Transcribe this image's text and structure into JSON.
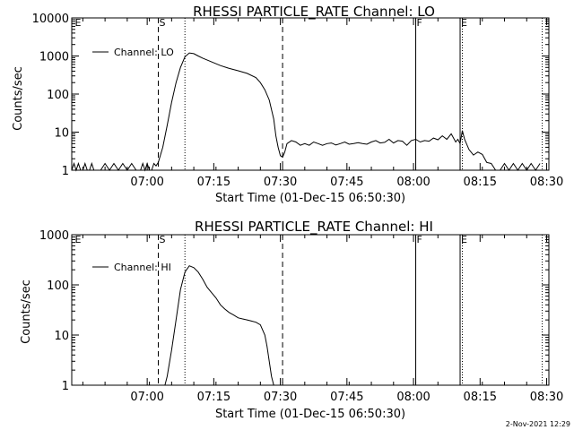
{
  "footer": {
    "timestamp": "2-Nov-2021 12:29"
  },
  "chart_data": [
    {
      "type": "line",
      "title": "RHESSI PARTICLE_RATE Channel: LO",
      "xlabel": "Start Time (01-Dec-15 06:50:30)",
      "ylabel": "Counts/sec",
      "yscale": "log",
      "ylim": [
        1,
        10000
      ],
      "xlim_min": [
        -7.5,
        100
      ],
      "yticks": [
        "1",
        "10",
        "100",
        "1000",
        "10000"
      ],
      "xticks": [
        "07:00",
        "07:15",
        "07:30",
        "07:45",
        "08:00",
        "08:15",
        "08:30"
      ],
      "xtick_min": [
        9.5,
        24.5,
        39.5,
        54.5,
        69.5,
        84.5,
        99.5
      ],
      "legend": {
        "label": "Channel: LO",
        "position": "top-left"
      },
      "markers": [
        {
          "label": "E",
          "x_min": -7,
          "style": "none"
        },
        {
          "label": "S",
          "x_min": 12,
          "style": "dashed"
        },
        {
          "label": "",
          "x_min": 18,
          "style": "dotted"
        },
        {
          "label": "",
          "x_min": 40,
          "style": "dashed"
        },
        {
          "label": "F",
          "x_min": 70,
          "style": "solid"
        },
        {
          "label": "E",
          "x_min": 80,
          "style": "solid"
        },
        {
          "label": "",
          "x_min": 80.5,
          "style": "dotted"
        },
        {
          "label": "",
          "x_min": 98.5,
          "style": "dotted"
        }
      ],
      "series": [
        {
          "name": "Channel: LO",
          "x_min": [
            -7.5,
            -7,
            -6.5,
            -6,
            -5.5,
            -5,
            -4.5,
            -4,
            -3.5,
            -3,
            -2.5,
            -2,
            -1,
            0,
            1,
            2,
            3,
            4,
            5,
            6,
            7,
            8,
            8.5,
            9,
            9.5,
            10,
            10.5,
            11,
            11.5,
            12,
            13,
            14,
            15,
            16,
            17,
            18,
            19,
            20,
            21,
            22,
            24,
            26,
            28,
            30,
            32,
            34,
            35,
            36,
            37,
            38,
            38.5,
            39,
            39.5,
            40,
            40.5,
            41,
            42,
            43,
            44,
            45,
            46,
            47,
            48,
            49,
            50,
            51,
            52,
            53,
            54,
            55,
            56,
            57,
            58,
            59,
            60,
            61,
            62,
            63,
            64,
            65,
            66,
            67,
            68,
            69,
            70,
            71,
            72,
            73,
            74,
            75,
            76,
            77,
            78,
            79,
            79.5,
            80,
            80.5,
            81,
            82,
            83,
            84,
            85,
            86,
            87,
            88,
            89,
            90,
            91,
            92,
            93,
            94,
            95,
            96,
            97,
            98
          ],
          "y": [
            1,
            1.5,
            1,
            1.5,
            1,
            1,
            1.5,
            1,
            1,
            1.5,
            1,
            1,
            1,
            1.5,
            1,
            1.5,
            1,
            1.5,
            1,
            1.5,
            1,
            1,
            1.5,
            1,
            1.5,
            1,
            1,
            1.5,
            1.3,
            1.6,
            4,
            15,
            60,
            200,
            500,
            950,
            1200,
            1150,
            1000,
            880,
            700,
            560,
            470,
            410,
            350,
            270,
            200,
            130,
            70,
            22,
            8,
            4,
            2.4,
            2.2,
            3,
            5,
            6,
            5.5,
            4.5,
            5,
            4.5,
            5.5,
            5,
            4.5,
            5,
            5.2,
            4.6,
            5,
            5.5,
            4.8,
            5,
            5.3,
            5,
            4.8,
            5.5,
            6,
            5.2,
            5.4,
            6.5,
            5.2,
            6,
            5.8,
            4.5,
            6,
            6.5,
            5.5,
            6,
            5.8,
            7,
            6.3,
            8,
            6.5,
            9,
            5.5,
            6.5,
            5,
            11,
            6.5,
            3.5,
            2.5,
            3,
            2.6,
            1.6,
            1.5,
            1,
            1,
            1.5,
            1,
            1.5,
            1,
            1.5,
            1,
            1.5,
            1,
            1.5
          ]
        }
      ]
    },
    {
      "type": "line",
      "title": "RHESSI PARTICLE_RATE Channel: HI",
      "xlabel": "Start Time (01-Dec-15 06:50:30)",
      "ylabel": "Counts/sec",
      "yscale": "log",
      "ylim": [
        1,
        1000
      ],
      "xlim_min": [
        -7.5,
        100
      ],
      "yticks": [
        "1",
        "10",
        "100",
        "1000"
      ],
      "xticks": [
        "07:00",
        "07:15",
        "07:30",
        "07:45",
        "08:00",
        "08:15",
        "08:30"
      ],
      "xtick_min": [
        9.5,
        24.5,
        39.5,
        54.5,
        69.5,
        84.5,
        99.5
      ],
      "legend": {
        "label": "Channel: HI",
        "position": "top-left"
      },
      "markers": [
        {
          "label": "E",
          "x_min": -7,
          "style": "none"
        },
        {
          "label": "S",
          "x_min": 12,
          "style": "dashed"
        },
        {
          "label": "",
          "x_min": 18,
          "style": "dotted"
        },
        {
          "label": "",
          "x_min": 40,
          "style": "dashed"
        },
        {
          "label": "F",
          "x_min": 70,
          "style": "solid"
        },
        {
          "label": "E",
          "x_min": 80,
          "style": "solid"
        },
        {
          "label": "",
          "x_min": 80.5,
          "style": "dotted"
        },
        {
          "label": "",
          "x_min": 98.5,
          "style": "dotted"
        }
      ],
      "series": [
        {
          "name": "Channel: HI",
          "x_min": [
            13.5,
            14,
            15,
            16,
            17,
            18,
            19,
            20,
            21,
            22,
            23,
            24,
            25,
            26,
            27,
            28,
            29,
            30,
            31,
            32,
            33,
            34,
            35,
            36,
            36.5,
            37,
            37.5,
            38
          ],
          "y": [
            1,
            1.5,
            5,
            20,
            80,
            180,
            240,
            220,
            180,
            130,
            90,
            70,
            55,
            40,
            33,
            28,
            25,
            22,
            21,
            20,
            19,
            18,
            16,
            10,
            6,
            3,
            1.5,
            1
          ]
        }
      ]
    }
  ]
}
